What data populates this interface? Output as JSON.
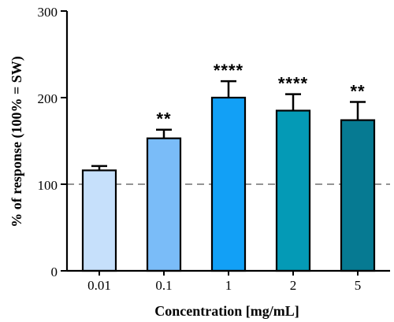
{
  "chart_data": {
    "type": "bar",
    "categories": [
      "0.01",
      "0.1",
      "1",
      "2",
      "5"
    ],
    "values": [
      116,
      153,
      200,
      185,
      174
    ],
    "errors": [
      5,
      10,
      19,
      19,
      21
    ],
    "significance": [
      "",
      "**",
      "****",
      "****",
      "**"
    ],
    "colors": [
      "#c6e0fb",
      "#7abcf8",
      "#12a0f6",
      "#049ab6",
      "#067a92"
    ],
    "xlabel": "Concentration [mg/mL]",
    "ylabel": "% of response (100% = SW)",
    "ylim": [
      0,
      300
    ],
    "yticks": [
      0,
      100,
      200,
      300
    ],
    "reference_line": 100,
    "grid": false
  }
}
